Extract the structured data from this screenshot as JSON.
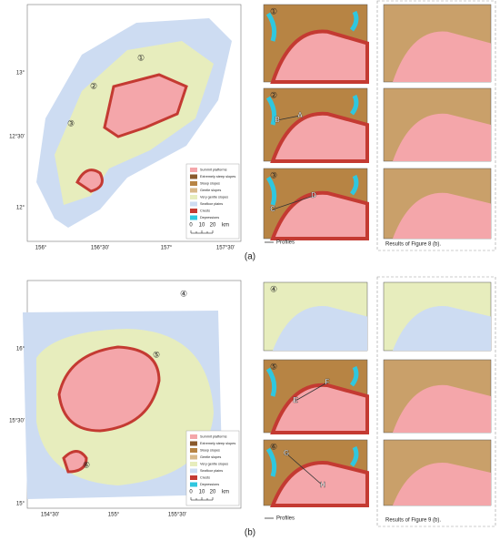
{
  "panels": [
    {
      "label": "(a)",
      "lat_labels": [
        "13°",
        "12°30'",
        "12°"
      ],
      "lon_labels": [
        "156°",
        "156°30'",
        "157°",
        "157°30'"
      ],
      "markers": [
        "①",
        "②",
        "③"
      ],
      "insets": [
        {
          "marker": "①"
        },
        {
          "marker": "②",
          "points": [
            "A",
            "B"
          ]
        },
        {
          "marker": "③",
          "points": [
            "C",
            "D"
          ]
        }
      ],
      "profiles_label": "Profiles",
      "results_caption": "Results of Figure 8 (b)."
    },
    {
      "label": "(b)",
      "lat_labels": [
        "16°",
        "15°30'",
        "15°"
      ],
      "lon_labels": [
        "154°30'",
        "155°",
        "155°30'"
      ],
      "markers": [
        "④",
        "⑤",
        "⑥"
      ],
      "insets": [
        {
          "marker": "④"
        },
        {
          "marker": "⑤",
          "points": [
            "E",
            "F"
          ]
        },
        {
          "marker": "⑥",
          "points": [
            "G",
            "H"
          ]
        }
      ],
      "profiles_label": "Profiles",
      "results_caption": "Results of Figure 9 (b)."
    }
  ],
  "legend": [
    {
      "label": "Summit platforms",
      "color": "#f4a6aa"
    },
    {
      "label": "Extremely steep slopes",
      "color": "#8a5a2c"
    },
    {
      "label": "Steep slopes",
      "color": "#b78444"
    },
    {
      "label": "Gentle slopes",
      "color": "#d8b98a"
    },
    {
      "label": "Very gentle slopes",
      "color": "#e7edbd"
    },
    {
      "label": "Seafloor plains",
      "color": "#cddcf2"
    },
    {
      "label": "Crests",
      "color": "#c43a32"
    },
    {
      "label": "Depressions",
      "color": "#2fc7df"
    }
  ],
  "scale": [
    "0",
    "10",
    "20",
    "km"
  ]
}
